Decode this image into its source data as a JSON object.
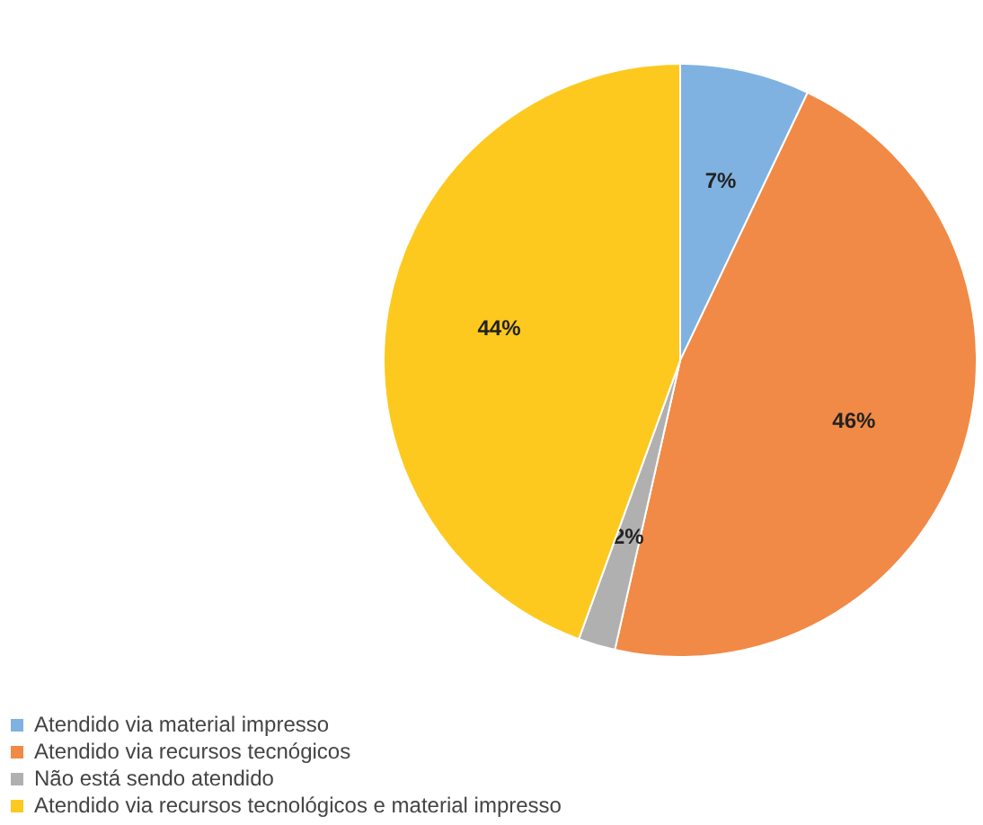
{
  "chart_data": {
    "type": "pie",
    "categories": [
      "Atendido via material impresso",
      "Atendido via recursos tecnógicos",
      "Não está sendo atendido",
      "Atendido via recursos tecnológicos e material impresso"
    ],
    "values": [
      7,
      46,
      2,
      44
    ],
    "colors": [
      "#7fb2e0",
      "#f08a46",
      "#b0b0b0",
      "#fdc91e"
    ],
    "value_labels": [
      "7%",
      "46%",
      "2%",
      "44%"
    ],
    "legend": "bottom left"
  }
}
